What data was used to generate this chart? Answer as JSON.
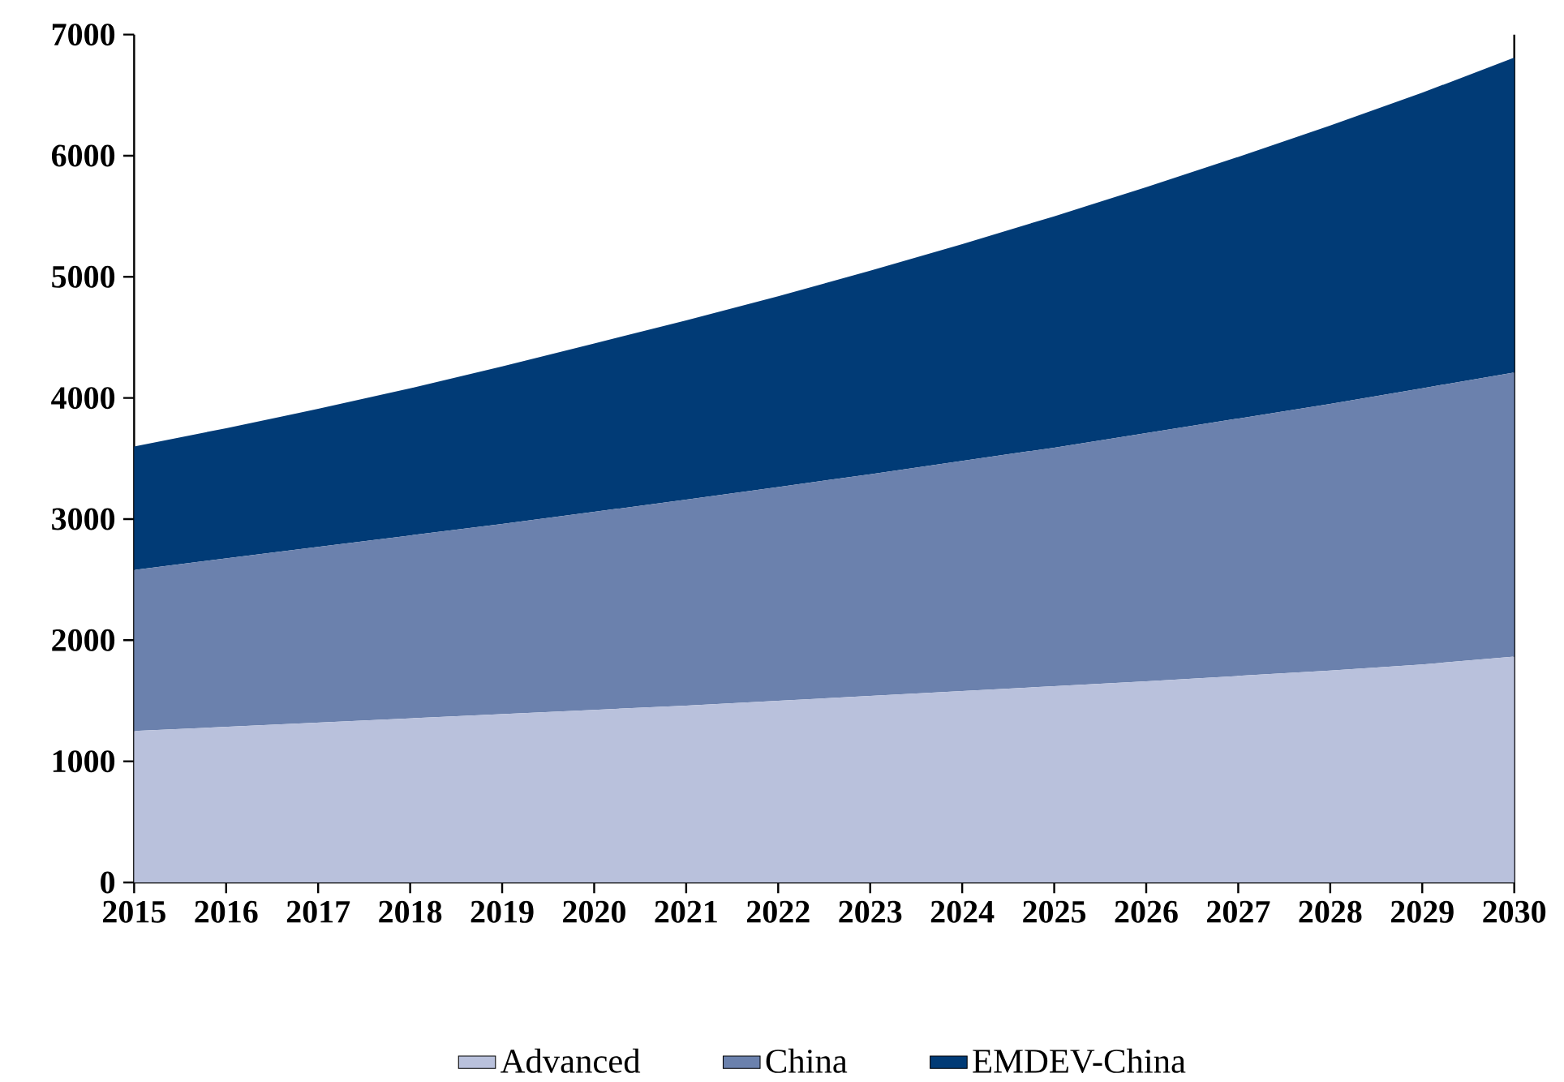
{
  "chart_data": {
    "type": "area",
    "stacked": true,
    "x": [
      2015,
      2016,
      2017,
      2018,
      2019,
      2020,
      2021,
      2022,
      2023,
      2024,
      2025,
      2026,
      2027,
      2028,
      2029,
      2030
    ],
    "series": [
      {
        "name": "Advanced",
        "color": "#b9c1dc",
        "values": [
          1250,
          1285,
          1320,
          1355,
          1390,
          1425,
          1460,
          1500,
          1540,
          1580,
          1620,
          1660,
          1705,
          1750,
          1800,
          1865
        ]
      },
      {
        "name": "China",
        "color": "#6b81ad",
        "values": [
          1330,
          1390,
          1450,
          1510,
          1570,
          1635,
          1700,
          1765,
          1830,
          1900,
          1970,
          2050,
          2125,
          2200,
          2280,
          2345
        ]
      },
      {
        "name": "EMDEV-China",
        "color": "#013b76",
        "values": [
          1020,
          1075,
          1140,
          1215,
          1300,
          1390,
          1480,
          1575,
          1680,
          1790,
          1910,
          2030,
          2160,
          2300,
          2440,
          2600
        ]
      }
    ],
    "xlim": [
      2015,
      2030
    ],
    "xticks": [
      2015,
      2016,
      2017,
      2018,
      2019,
      2020,
      2021,
      2022,
      2023,
      2024,
      2025,
      2026,
      2027,
      2028,
      2029,
      2030
    ],
    "ylim": [
      0,
      7000
    ],
    "yticks": [
      0,
      1000,
      2000,
      3000,
      4000,
      5000,
      6000,
      7000
    ],
    "grid": false,
    "legend": "bottom"
  }
}
